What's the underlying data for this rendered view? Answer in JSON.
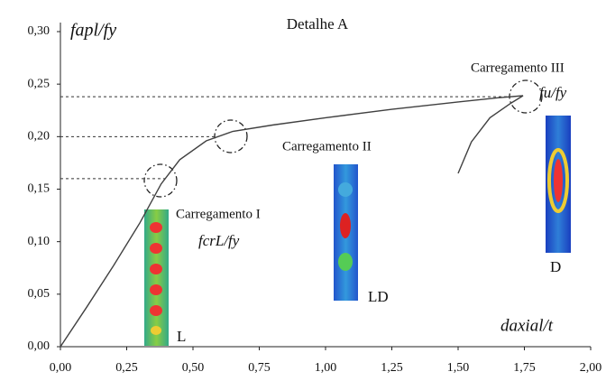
{
  "chart_data": {
    "type": "line",
    "title": "Detalhe A",
    "y_label": "fapl/fy",
    "x_label": "daxial/t",
    "annotations": [
      "Carregamento I",
      "fcrL/fy",
      "Carregamento II",
      "Carregamento III",
      "fu/fy",
      "L",
      "LD",
      "D"
    ],
    "x": [
      0,
      0.1,
      0.2,
      0.3,
      0.38,
      0.45,
      0.55,
      0.65,
      0.8,
      1.0,
      1.25,
      1.5,
      1.65,
      1.745,
      1.7,
      1.62,
      1.55,
      1.5
    ],
    "series": [
      {
        "color": "#404040",
        "values": [
          0,
          0.038,
          0.077,
          0.118,
          0.155,
          0.178,
          0.196,
          0.205,
          0.211,
          0.218,
          0.226,
          0.233,
          0.237,
          0.239,
          0.232,
          0.218,
          0.195,
          0.165
        ]
      }
    ],
    "reference_levels": [
      0.16,
      0.2,
      0.238
    ],
    "xlim": [
      0,
      2
    ],
    "ylim": [
      0,
      0.3
    ],
    "xticks": [
      {
        "value": 0,
        "label": "0,00"
      },
      {
        "value": 0.25,
        "label": "0,25"
      },
      {
        "value": 0.5,
        "label": "0,50"
      },
      {
        "value": 0.75,
        "label": "0,75"
      },
      {
        "value": 1,
        "label": "1,00"
      },
      {
        "value": 1.25,
        "label": "1,25"
      },
      {
        "value": 1.5,
        "label": "1,50"
      },
      {
        "value": 1.75,
        "label": "1,75"
      },
      {
        "value": 2,
        "label": "2,00"
      }
    ],
    "yticks": [
      {
        "value": 0,
        "label": "0,00"
      },
      {
        "value": 0.05,
        "label": "0,05"
      },
      {
        "value": 0.1,
        "label": "0,10"
      },
      {
        "value": 0.15,
        "label": "0,15"
      },
      {
        "value": 0.2,
        "label": "0,20"
      },
      {
        "value": 0.25,
        "label": "0,25"
      },
      {
        "value": 0.3,
        "label": "0,30"
      }
    ]
  }
}
